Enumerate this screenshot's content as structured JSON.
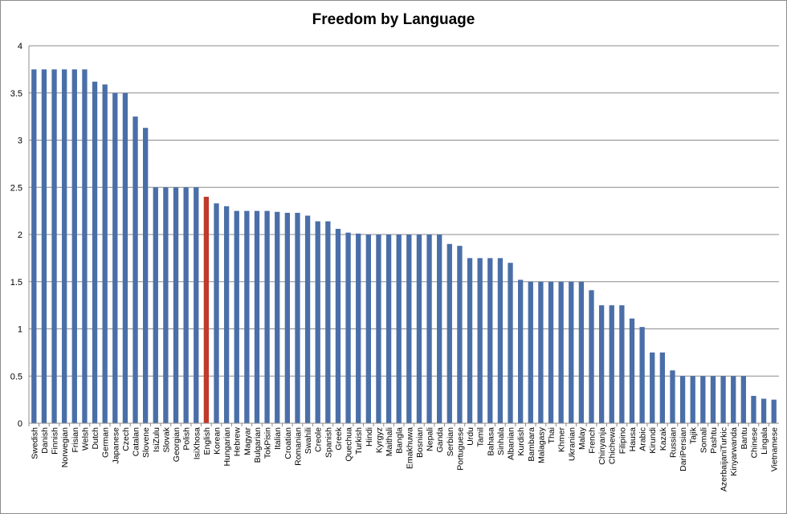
{
  "chart_data": {
    "type": "bar",
    "title": "Freedom by Language",
    "xlabel": "",
    "ylabel": "",
    "ylim": [
      0,
      4
    ],
    "yticks": [
      "0",
      "0.5",
      "1",
      "1.5",
      "2",
      "2.5",
      "3",
      "3.5",
      "4"
    ],
    "grid": true,
    "legend": "none",
    "colors": {
      "bar": "#4a6fa8",
      "highlight": "#c0392b",
      "grid": "#8c8c8c"
    },
    "highlight_category": "English",
    "categories": [
      "Swedish",
      "Danish",
      "Finnish",
      "Norwegian",
      "Frisian",
      "Welsh",
      "Dutch",
      "German",
      "Japanese",
      "Czech",
      "Catalan",
      "Slovene",
      "IsiZulu",
      "Slovak",
      "Georgian",
      "Polish",
      "IsiXhosa",
      "English",
      "Korean",
      "Hungarian",
      "Hebrew",
      "Magyar",
      "Bulgarian",
      "TokPisin",
      "Italian",
      "Croatian",
      "Romanian",
      "Swahili",
      "Creole",
      "Spanish",
      "Greek",
      "Quechua",
      "Turkish",
      "Hindi",
      "Kyrgyz",
      "Maithali",
      "Bangla",
      "Emakhuwa",
      "Bosnian",
      "Nepali",
      "Ganda",
      "Serbian",
      "Portuguese",
      "Urdu",
      "Tamil",
      "Bahasa",
      "Sinhala",
      "Albanian",
      "Kurdish",
      "Bambara",
      "Malagasy",
      "Thai",
      "Khmer",
      "Ukranian",
      "Malay",
      "French",
      "Chinyanja",
      "Chichewa",
      "Filipino",
      "Hausa",
      "Arabic",
      "Kirundi",
      "Kazak",
      "Russian",
      "DariPersian",
      "Tajik",
      "Somali",
      "Pashtu",
      "AzerbaijaniTurkic",
      "Kinyarwanda",
      "Bantu",
      "Chinese",
      "Lingala",
      "Vietnamese"
    ],
    "values": [
      3.75,
      3.75,
      3.75,
      3.75,
      3.75,
      3.75,
      3.62,
      3.59,
      3.5,
      3.5,
      3.25,
      3.13,
      2.5,
      2.5,
      2.5,
      2.5,
      2.5,
      2.4,
      2.33,
      2.3,
      2.25,
      2.25,
      2.25,
      2.25,
      2.24,
      2.23,
      2.23,
      2.2,
      2.14,
      2.14,
      2.06,
      2.02,
      2.01,
      2.0,
      2.0,
      2.0,
      2.0,
      2.0,
      2.0,
      2.0,
      2.0,
      1.9,
      1.88,
      1.75,
      1.75,
      1.75,
      1.75,
      1.7,
      1.52,
      1.5,
      1.5,
      1.5,
      1.5,
      1.5,
      1.5,
      1.41,
      1.25,
      1.25,
      1.25,
      1.11,
      1.02,
      0.75,
      0.75,
      0.56,
      0.5,
      0.5,
      0.5,
      0.5,
      0.5,
      0.5,
      0.5,
      0.29,
      0.26,
      0.25
    ]
  }
}
